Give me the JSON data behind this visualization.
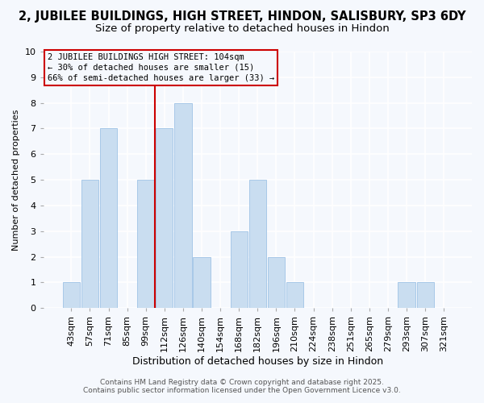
{
  "title": "2, JUBILEE BUILDINGS, HIGH STREET, HINDON, SALISBURY, SP3 6DY",
  "subtitle": "Size of property relative to detached houses in Hindon",
  "xlabel": "Distribution of detached houses by size in Hindon",
  "ylabel": "Number of detached properties",
  "bar_labels": [
    "43sqm",
    "57sqm",
    "71sqm",
    "85sqm",
    "99sqm",
    "112sqm",
    "126sqm",
    "140sqm",
    "154sqm",
    "168sqm",
    "182sqm",
    "196sqm",
    "210sqm",
    "224sqm",
    "238sqm",
    "251sqm",
    "265sqm",
    "279sqm",
    "293sqm",
    "307sqm",
    "321sqm"
  ],
  "bar_values": [
    1,
    5,
    7,
    0,
    5,
    7,
    8,
    2,
    0,
    3,
    5,
    2,
    1,
    0,
    0,
    0,
    0,
    0,
    1,
    1,
    0
  ],
  "bar_color": "#c9ddf0",
  "bar_edgecolor": "#a8c8e8",
  "vline_x_index": 4.5,
  "vline_color": "#cc0000",
  "annotation_line1": "2 JUBILEE BUILDINGS HIGH STREET: 104sqm",
  "annotation_line2": "← 30% of detached houses are smaller (15)",
  "annotation_line3": "66% of semi-detached houses are larger (33) →",
  "annotation_box_edgecolor": "#cc0000",
  "ylim": [
    0,
    10
  ],
  "yticks": [
    0,
    1,
    2,
    3,
    4,
    5,
    6,
    7,
    8,
    9,
    10
  ],
  "footer1": "Contains HM Land Registry data © Crown copyright and database right 2025.",
  "footer2": "Contains public sector information licensed under the Open Government Licence v3.0.",
  "bg_color": "#f5f8fd",
  "plot_bg_color": "#f5f8fd",
  "grid_color": "#ffffff",
  "title_fontsize": 10.5,
  "subtitle_fontsize": 9.5,
  "xlabel_fontsize": 9,
  "ylabel_fontsize": 8,
  "tick_fontsize": 8,
  "footer_fontsize": 6.5,
  "ann_fontsize": 7.5
}
